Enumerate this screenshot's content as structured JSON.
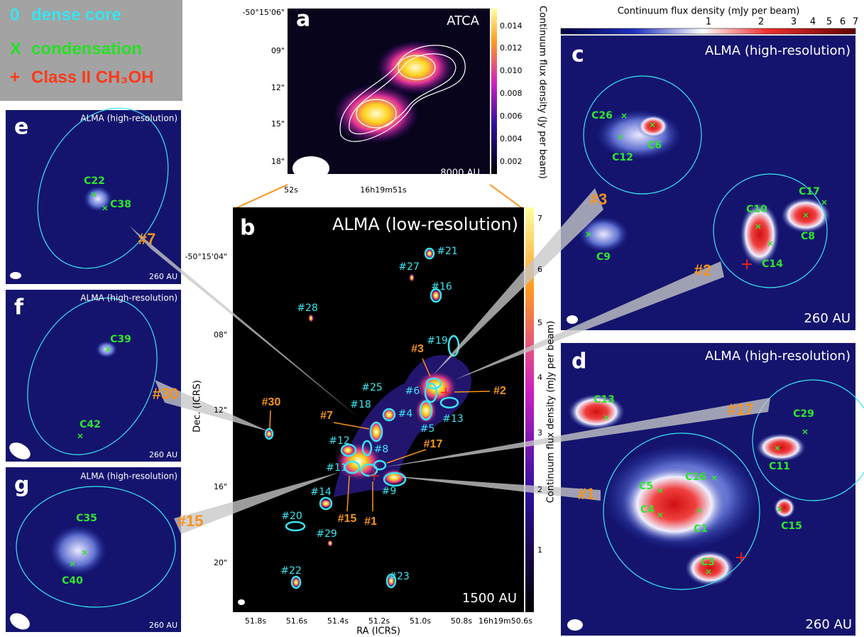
{
  "legend": [
    {
      "symbol": "0",
      "label": "dense core"
    },
    {
      "symbol": "X",
      "label": "condensation"
    },
    {
      "symbol": "+",
      "label": "Class II CH₃OH"
    }
  ],
  "top_colorbar": {
    "label": "Continuum flux density (mJy per beam)",
    "ticks": [
      "1",
      "2",
      "3",
      "4",
      "5",
      "6",
      "7"
    ]
  },
  "panels": {
    "a": {
      "letter": "a",
      "telescope": "ATCA",
      "scale": "8000 AU",
      "yticks": [
        "-50°15'06\"",
        "09\"",
        "12\"",
        "15\"",
        "18\""
      ],
      "xticks": [
        "52s",
        "16h19m51s"
      ],
      "colorbar": {
        "label": "Continuum flux density (Jy per beam)",
        "ticks": [
          "0.014",
          "0.012",
          "0.010",
          "0.008",
          "0.006",
          "0.004",
          "0.002"
        ]
      }
    },
    "b": {
      "letter": "b",
      "telescope": "ALMA (low-resolution)",
      "scale": "1500 AU",
      "ylabel": "Dec. (ICRS)",
      "xlabel": "RA (ICRS)",
      "yticks": [
        "-50°15'04\"",
        "08\"",
        "12\"",
        "16\"",
        "20\""
      ],
      "xticks": [
        "51.8s",
        "51.6s",
        "51.4s",
        "51.2s",
        "51.0s",
        "50.8s",
        "16h19m50.6s"
      ],
      "colorbar": {
        "label": "Continuum flux density (mJy per beam)",
        "ticks": [
          "7",
          "6",
          "5",
          "4",
          "3",
          "2",
          "1"
        ]
      },
      "cores": [
        "#21",
        "#27",
        "#16",
        "#28",
        "#19",
        "#25",
        "#18",
        "#6",
        "#4",
        "#5",
        "#13",
        "#12",
        "#8",
        "#11",
        "#9",
        "#14",
        "#20",
        "#29",
        "#22",
        "#23"
      ],
      "highlighted": [
        "#3",
        "#2",
        "#7",
        "#17",
        "#30",
        "#15",
        "#1"
      ]
    },
    "c": {
      "letter": "c",
      "telescope": "ALMA (high-resolution)",
      "scale": "260 AU",
      "condensations": [
        "C26",
        "C12",
        "C6",
        "C10",
        "C17",
        "C8",
        "C14",
        "C9"
      ],
      "cores": [
        "#3",
        "#2"
      ]
    },
    "d": {
      "letter": "d",
      "telescope": "ALMA (high-resolution)",
      "scale": "260 AU",
      "condensations": [
        "C13",
        "C29",
        "C11",
        "C16",
        "C5",
        "C4",
        "C1",
        "C15",
        "C3"
      ],
      "cores": [
        "#17",
        "#1"
      ]
    },
    "e": {
      "letter": "e",
      "telescope": "ALMA (high-resolution)",
      "scale": "260 AU",
      "condensations": [
        "C22",
        "C38"
      ],
      "cores": [
        "#7"
      ]
    },
    "f": {
      "letter": "f",
      "telescope": "ALMA (high-resolution)",
      "scale": "260 AU",
      "condensations": [
        "C39",
        "C42"
      ],
      "cores": [
        "#30"
      ]
    },
    "g": {
      "letter": "g",
      "telescope": "ALMA (high-resolution)",
      "scale": "260 AU",
      "condensations": [
        "C35",
        "C40"
      ],
      "cores": [
        "#15"
      ]
    }
  }
}
